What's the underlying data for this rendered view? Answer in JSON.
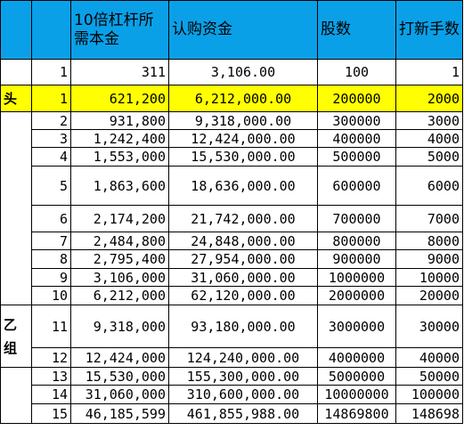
{
  "header": {
    "c1": "",
    "c2": "",
    "c3": "10倍杠杆所需本金",
    "c4": "认购资金",
    "c5": "股数",
    "c6": "打新手数"
  },
  "groups": {
    "head": "头",
    "yi": "乙",
    "zu": "组"
  },
  "rows": [
    {
      "no": "1",
      "capital": "311",
      "subscription": "3,106.00",
      "shares": "100",
      "lots": "1"
    },
    {
      "no": "1",
      "capital": "621,200",
      "subscription": "6,212,000.00",
      "shares": "200000",
      "lots": "2000"
    },
    {
      "no": "2",
      "capital": "931,800",
      "subscription": "9,318,000.00",
      "shares": "300000",
      "lots": "3000"
    },
    {
      "no": "3",
      "capital": "1,242,400",
      "subscription": "12,424,000.00",
      "shares": "400000",
      "lots": "4000"
    },
    {
      "no": "4",
      "capital": "1,553,000",
      "subscription": "15,530,000.00",
      "shares": "500000",
      "lots": "5000"
    },
    {
      "no": "5",
      "capital": "1,863,600",
      "subscription": "18,636,000.00",
      "shares": "600000",
      "lots": "6000"
    },
    {
      "no": "6",
      "capital": "2,174,200",
      "subscription": "21,742,000.00",
      "shares": "700000",
      "lots": "7000"
    },
    {
      "no": "7",
      "capital": "2,484,800",
      "subscription": "24,848,000.00",
      "shares": "800000",
      "lots": "8000"
    },
    {
      "no": "8",
      "capital": "2,795,400",
      "subscription": "27,954,000.00",
      "shares": "900000",
      "lots": "9000"
    },
    {
      "no": "9",
      "capital": "3,106,000",
      "subscription": "31,060,000.00",
      "shares": "1000000",
      "lots": "10000"
    },
    {
      "no": "10",
      "capital": "6,212,000",
      "subscription": "62,120,000.00",
      "shares": "2000000",
      "lots": "20000"
    },
    {
      "no": "11",
      "capital": "9,318,000",
      "subscription": "93,180,000.00",
      "shares": "3000000",
      "lots": "30000"
    },
    {
      "no": "12",
      "capital": "12,424,000",
      "subscription": "124,240,000.00",
      "shares": "4000000",
      "lots": "40000"
    },
    {
      "no": "13",
      "capital": "15,530,000",
      "subscription": "155,300,000.00",
      "shares": "5000000",
      "lots": "50000"
    },
    {
      "no": "14",
      "capital": "31,060,000",
      "subscription": "310,600,000.00",
      "shares": "10000000",
      "lots": "100000"
    },
    {
      "no": "15",
      "capital": "46,185,599",
      "subscription": "461,855,988.00",
      "shares": "14869800",
      "lots": "148698"
    }
  ],
  "colors": {
    "header_bg": "#0aa0e8",
    "highlight_row": "#ffff00"
  }
}
